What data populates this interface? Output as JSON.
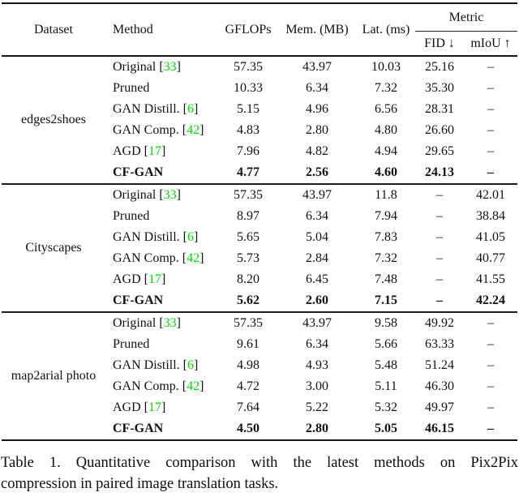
{
  "colors": {
    "citation_green": "#00DD00"
  },
  "header": {
    "dataset": "Dataset",
    "method": "Method",
    "gflops": "GFLOPs",
    "mem": "Mem. (MB)",
    "lat": "Lat. (ms)",
    "metric": "Metric",
    "fid": "FID ↓",
    "miou": "mIoU ↑"
  },
  "groups": [
    {
      "dataset": "edges2shoes",
      "rows": [
        {
          "method": "Original",
          "cite_open": " [",
          "cite": "33",
          "cite_close": "]",
          "gflops": "57.35",
          "mem": "43.97",
          "lat": "10.03",
          "fid": "25.16",
          "miou": "–"
        },
        {
          "method": "Pruned",
          "gflops": "10.33",
          "mem": "6.34",
          "lat": "7.32",
          "fid": "35.30",
          "miou": "–"
        },
        {
          "method": "GAN Distill.",
          "cite_open": " [",
          "cite": "6",
          "cite_close": "]",
          "gflops": "5.15",
          "mem": "4.96",
          "lat": "6.56",
          "fid": "28.31",
          "miou": "–"
        },
        {
          "method": "GAN Comp.",
          "cite_open": " [",
          "cite": "42",
          "cite_close": "]",
          "gflops": "4.83",
          "mem": "2.80",
          "lat": "4.80",
          "fid": "26.60",
          "miou": "–"
        },
        {
          "method": "AGD",
          "cite_open": " [",
          "cite": "17",
          "cite_close": "]",
          "gflops": "7.96",
          "mem": "4.82",
          "lat": "4.94",
          "fid": "29.65",
          "miou": "–"
        },
        {
          "method": "CF-GAN",
          "gflops": "4.77",
          "mem": "2.56",
          "lat": "4.60",
          "fid": "24.13",
          "miou": "–"
        }
      ]
    },
    {
      "dataset": "Cityscapes",
      "rows": [
        {
          "method": "Original",
          "cite_open": " [",
          "cite": "33",
          "cite_close": "]",
          "gflops": "57.35",
          "mem": "43.97",
          "lat": "11.8",
          "fid": "–",
          "miou": "42.01"
        },
        {
          "method": "Pruned",
          "gflops": "8.97",
          "mem": "6.34",
          "lat": "7.94",
          "fid": "–",
          "miou": "38.84"
        },
        {
          "method": "GAN Distill.",
          "cite_open": " [",
          "cite": "6",
          "cite_close": "]",
          "gflops": "5.65",
          "mem": "5.04",
          "lat": "7.83",
          "fid": "–",
          "miou": "41.05"
        },
        {
          "method": "GAN Comp.",
          "cite_open": " [",
          "cite": "42",
          "cite_close": "]",
          "gflops": "5.73",
          "mem": "2.84",
          "lat": "7.32",
          "fid": "–",
          "miou": "40.77"
        },
        {
          "method": "AGD",
          "cite_open": " [",
          "cite": "17",
          "cite_close": "]",
          "gflops": "8.20",
          "mem": "6.45",
          "lat": "7.48",
          "fid": "–",
          "miou": "41.55"
        },
        {
          "method": "CF-GAN",
          "gflops": "5.62",
          "mem": "2.60",
          "lat": "7.15",
          "fid": "–",
          "miou": "42.24"
        }
      ]
    },
    {
      "dataset": "map2arial photo",
      "rows": [
        {
          "method": "Original",
          "cite_open": " [",
          "cite": "33",
          "cite_close": "]",
          "gflops": "57.35",
          "mem": "43.97",
          "lat": "9.58",
          "fid": "49.92",
          "miou": "–"
        },
        {
          "method": "Pruned",
          "gflops": "9.61",
          "mem": "6.34",
          "lat": "5.66",
          "fid": "63.33",
          "miou": "–"
        },
        {
          "method": "GAN Distill.",
          "cite_open": " [",
          "cite": "6",
          "cite_close": "]",
          "gflops": "4.98",
          "mem": "4.93",
          "lat": "5.48",
          "fid": "51.24",
          "miou": "–"
        },
        {
          "method": "GAN Comp.",
          "cite_open": " [",
          "cite": "42",
          "cite_close": "]",
          "gflops": "4.72",
          "mem": "3.00",
          "lat": "5.11",
          "fid": "46.30",
          "miou": "–"
        },
        {
          "method": "AGD",
          "cite_open": " [",
          "cite": "17",
          "cite_close": "]",
          "gflops": "7.64",
          "mem": "5.22",
          "lat": "5.32",
          "fid": "49.97",
          "miou": "–"
        },
        {
          "method": "CF-GAN",
          "gflops": "4.50",
          "mem": "2.80",
          "lat": "5.05",
          "fid": "46.15",
          "miou": "–"
        }
      ]
    }
  ],
  "caption": {
    "line1": "Table 1. Quantitative comparison with the latest methods on Pix2Pix",
    "line2": "compression in paired image translation tasks."
  }
}
